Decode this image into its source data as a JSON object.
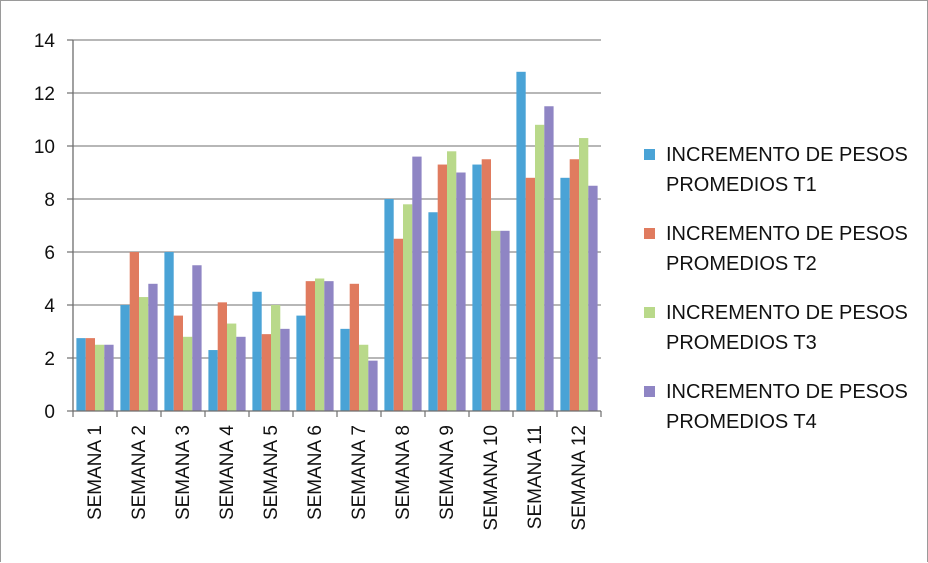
{
  "chart_data": {
    "type": "bar",
    "title": "",
    "xlabel": "",
    "ylabel": "",
    "ylim": [
      0,
      14
    ],
    "yticks": [
      0,
      2,
      4,
      6,
      8,
      10,
      12,
      14
    ],
    "grid": "horizontal",
    "legend_position": "right",
    "categories": [
      "SEMANA 1",
      "SEMANA 2",
      "SEMANA 3",
      "SEMANA 4",
      "SEMANA 5",
      "SEMANA 6",
      "SEMANA 7",
      "SEMANA 8",
      "SEMANA 9",
      "SEMANA 10",
      "SEMANA 11",
      "SEMANA 12"
    ],
    "series": [
      {
        "name": "INCREMENTO DE PESOS PROMEDIOS T1",
        "color": "#4aa3d6",
        "values": [
          2.75,
          4.0,
          6.0,
          2.3,
          4.5,
          3.6,
          3.1,
          8.0,
          7.5,
          9.3,
          12.8,
          8.8
        ]
      },
      {
        "name": "INCREMENTO DE PESOS PROMEDIOS T2",
        "color": "#e07b5f",
        "values": [
          2.75,
          6.0,
          3.6,
          4.1,
          2.9,
          4.9,
          4.8,
          6.5,
          9.3,
          9.5,
          8.8,
          9.5
        ]
      },
      {
        "name": "INCREMENTO DE PESOS PROMEDIOS T3",
        "color": "#b9d98a",
        "values": [
          2.5,
          4.3,
          2.8,
          3.3,
          4.0,
          5.0,
          2.5,
          7.8,
          9.8,
          6.8,
          10.8,
          10.3
        ]
      },
      {
        "name": "INCREMENTO DE PESOS PROMEDIOS T4",
        "color": "#8f85c4",
        "values": [
          2.5,
          4.8,
          5.5,
          2.8,
          3.1,
          4.9,
          1.9,
          9.6,
          9.0,
          6.8,
          11.5,
          8.5
        ]
      }
    ]
  }
}
